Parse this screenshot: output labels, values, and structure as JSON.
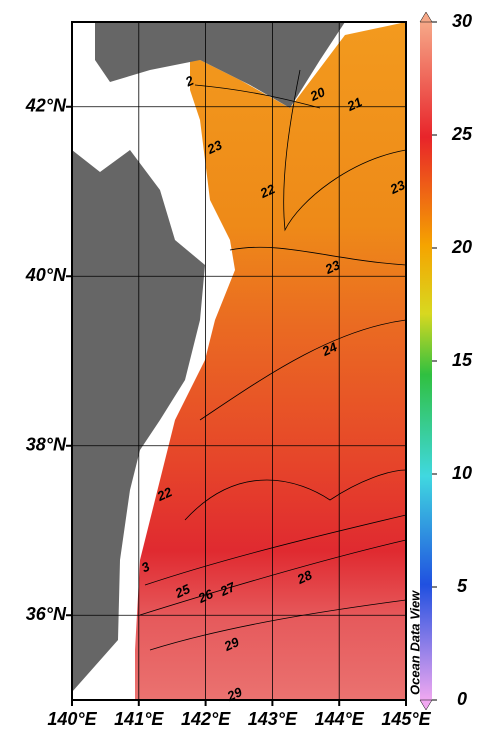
{
  "map": {
    "lon_ticks": [
      {
        "value": 140,
        "label": "140°E"
      },
      {
        "value": 141,
        "label": "141°E"
      },
      {
        "value": 142,
        "label": "142°E"
      },
      {
        "value": 143,
        "label": "143°E"
      },
      {
        "value": 144,
        "label": "144°E"
      },
      {
        "value": 145,
        "label": "145°E"
      }
    ],
    "lat_ticks": [
      {
        "value": 36,
        "label": "36°N"
      },
      {
        "value": 38,
        "label": "38°N"
      },
      {
        "value": 40,
        "label": "40°N"
      },
      {
        "value": 42,
        "label": "42°N"
      }
    ],
    "lonlim": [
      140,
      145
    ],
    "latlim": [
      35,
      43
    ],
    "contour_labels": [
      "2",
      "20",
      "21",
      "23",
      "22",
      "23",
      "23",
      "24",
      "22",
      "3",
      "25",
      "26",
      "27",
      "28",
      "29",
      "29"
    ],
    "watermark": "Ocean Data View"
  },
  "colorbar": {
    "range": [
      0,
      30
    ],
    "ticks": [
      0,
      5,
      10,
      15,
      20,
      25,
      30
    ]
  }
}
